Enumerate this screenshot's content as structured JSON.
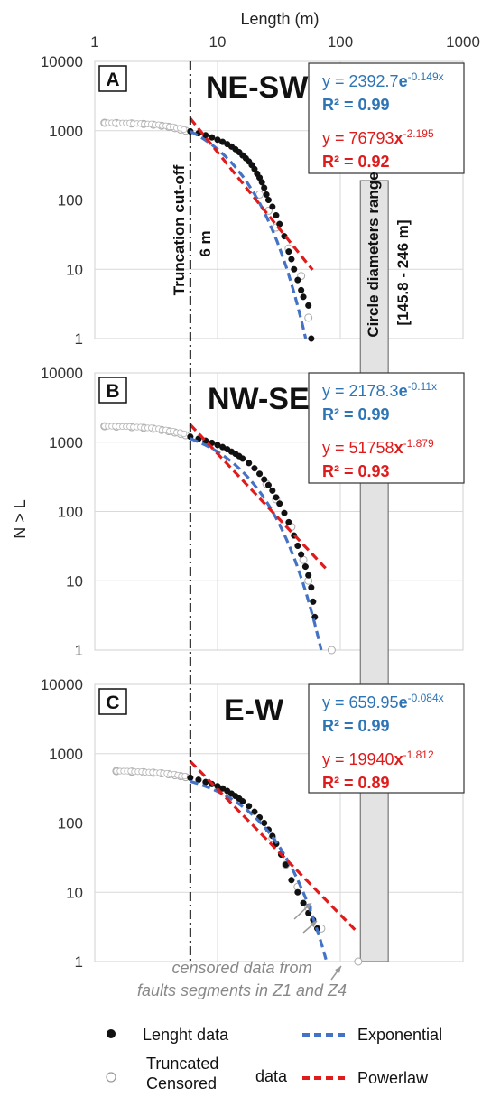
{
  "x_axis_title": "Length (m)",
  "y_axis_title": "N > L",
  "x_ticks": [
    "1",
    "10",
    "100",
    "1000"
  ],
  "y_ticks": [
    "10000",
    "1000",
    "100",
    "10",
    "1"
  ],
  "cutoff": {
    "label_line1": "Truncation cut-off",
    "label_line2": "6 m",
    "value": 6
  },
  "range_band": {
    "label_line1": "Circle diameters range",
    "label_line2": "[145.8 - 246 m]",
    "min": 145.8,
    "max": 246
  },
  "censored_note": {
    "line1": "censored data from",
    "line2": "faults segments in Z1 and Z4"
  },
  "legend": {
    "length_data": "Lenght data",
    "truncated_line1": "Truncated",
    "truncated_line2": "Censored",
    "truncated_suffix": "data",
    "exponential": "Exponential",
    "powerlaw": "Powerlaw"
  },
  "colors": {
    "exponential": "#4472c4",
    "powerlaw": "#e01b1b",
    "exp_text": "#2e75b6",
    "band": "#e3e3e3",
    "grid": "#d9d9d9"
  },
  "panels": [
    {
      "letter": "A",
      "title": "NE-SW",
      "exp_eq": {
        "prefix": "y = 2392.7",
        "e": "e",
        "exp": "-0.149x",
        "r2": "R² = 0.99"
      },
      "pow_eq": {
        "prefix": "y = 76793",
        "x": "x",
        "exp": "-2.195",
        "r2": "R² = 0.92"
      }
    },
    {
      "letter": "B",
      "title": "NW-SE",
      "exp_eq": {
        "prefix": "y = 2178.3",
        "e": "e",
        "exp": "-0.11x",
        "r2": "R² = 0.99"
      },
      "pow_eq": {
        "prefix": "y = 51758",
        "x": "x",
        "exp": "-1.879",
        "r2": "R² = 0.93"
      }
    },
    {
      "letter": "C",
      "title": "E-W",
      "exp_eq": {
        "prefix": "y = 659.95",
        "e": "e",
        "exp": "-0.084x",
        "r2": "R² = 0.99"
      },
      "pow_eq": {
        "prefix": "y = 19940",
        "x": "x",
        "exp": "-1.812",
        "r2": "R² = 0.89"
      }
    }
  ],
  "chart_data": [
    {
      "type": "scatter",
      "title": "NE-SW",
      "xlabel": "Length (m)",
      "ylabel": "N > L",
      "xscale": "log",
      "yscale": "log",
      "xlim": [
        1,
        1000
      ],
      "ylim": [
        1,
        10000
      ],
      "grid": true,
      "series": [
        {
          "name": "Lenght data",
          "marker": "filled",
          "x": [
            6,
            7,
            8,
            9,
            10,
            11,
            12,
            13,
            14,
            15,
            16,
            17,
            18,
            19,
            20,
            21,
            22,
            23,
            24,
            25,
            26,
            28,
            30,
            32,
            35,
            38,
            40,
            42,
            45,
            48,
            50,
            55,
            58
          ],
          "y": [
            980,
            920,
            860,
            800,
            740,
            690,
            640,
            590,
            540,
            490,
            440,
            400,
            360,
            320,
            280,
            240,
            210,
            180,
            150,
            120,
            100,
            80,
            60,
            45,
            30,
            18,
            14,
            10,
            7,
            5,
            4,
            3,
            1
          ]
        },
        {
          "name": "Truncated Censored data",
          "marker": "open",
          "x": [
            1.2,
            1.5,
            2,
            2.5,
            3,
            3.5,
            4,
            4.5,
            5,
            5.5,
            22,
            26,
            30,
            38,
            48,
            55
          ],
          "y": [
            1300,
            1290,
            1270,
            1250,
            1220,
            1180,
            1140,
            1090,
            1040,
            1000,
            120,
            70,
            40,
            20,
            8,
            2
          ]
        }
      ],
      "fits": [
        {
          "name": "Exponential",
          "a": 2392.7,
          "b": -0.149
        },
        {
          "name": "Powerlaw",
          "a": 76793,
          "b": -2.195
        }
      ]
    },
    {
      "type": "scatter",
      "title": "NW-SE",
      "xlabel": "Length (m)",
      "ylabel": "N > L",
      "xscale": "log",
      "yscale": "log",
      "xlim": [
        1,
        1000
      ],
      "ylim": [
        1,
        10000
      ],
      "grid": true,
      "series": [
        {
          "name": "Lenght data",
          "marker": "filled",
          "x": [
            6,
            7,
            8,
            9,
            10,
            11,
            12,
            13,
            14,
            15,
            16,
            18,
            20,
            22,
            24,
            26,
            28,
            30,
            32,
            35,
            38,
            42,
            45,
            48,
            52,
            55,
            58,
            60,
            62
          ],
          "y": [
            1200,
            1120,
            1050,
            980,
            910,
            850,
            790,
            730,
            680,
            630,
            580,
            500,
            420,
            350,
            290,
            240,
            200,
            160,
            130,
            95,
            70,
            45,
            32,
            24,
            16,
            12,
            8,
            5,
            3
          ]
        },
        {
          "name": "Truncated Censored data",
          "marker": "open",
          "x": [
            1.2,
            1.5,
            2,
            2.5,
            3,
            3.5,
            4,
            4.5,
            5,
            5.5,
            25,
            30,
            40,
            50,
            55,
            85
          ],
          "y": [
            1700,
            1680,
            1650,
            1610,
            1560,
            1500,
            1440,
            1380,
            1320,
            1260,
            250,
            150,
            60,
            20,
            10,
            1
          ]
        }
      ],
      "fits": [
        {
          "name": "Exponential",
          "a": 2178.3,
          "b": -0.11
        },
        {
          "name": "Powerlaw",
          "a": 51758,
          "b": -1.879
        }
      ]
    },
    {
      "type": "scatter",
      "title": "E-W",
      "xlabel": "Length (m)",
      "ylabel": "N > L",
      "xscale": "log",
      "yscale": "log",
      "xlim": [
        1,
        1000
      ],
      "ylim": [
        1,
        10000
      ],
      "grid": true,
      "series": [
        {
          "name": "Lenght data",
          "marker": "filled",
          "x": [
            6,
            7,
            8,
            9,
            10,
            11,
            12,
            13,
            14,
            15,
            16,
            18,
            20,
            22,
            24,
            26,
            28,
            30,
            33,
            36,
            40,
            45,
            50,
            55,
            60,
            65
          ],
          "y": [
            450,
            420,
            390,
            365,
            340,
            315,
            290,
            265,
            245,
            225,
            205,
            175,
            145,
            120,
            100,
            80,
            65,
            50,
            35,
            25,
            15,
            10,
            7,
            5,
            4,
            3
          ]
        },
        {
          "name": "Truncated Censored data",
          "marker": "open",
          "x": [
            1.5,
            2,
            2.5,
            3,
            3.5,
            4,
            4.5,
            5,
            5.5,
            28,
            36,
            45,
            55,
            70,
            140
          ],
          "y": [
            560,
            550,
            540,
            530,
            520,
            505,
            490,
            475,
            460,
            60,
            25,
            12,
            6,
            3,
            1
          ]
        }
      ],
      "fits": [
        {
          "name": "Exponential",
          "a": 659.95,
          "b": -0.084
        },
        {
          "name": "Powerlaw",
          "a": 19940,
          "b": -1.812
        }
      ]
    }
  ]
}
